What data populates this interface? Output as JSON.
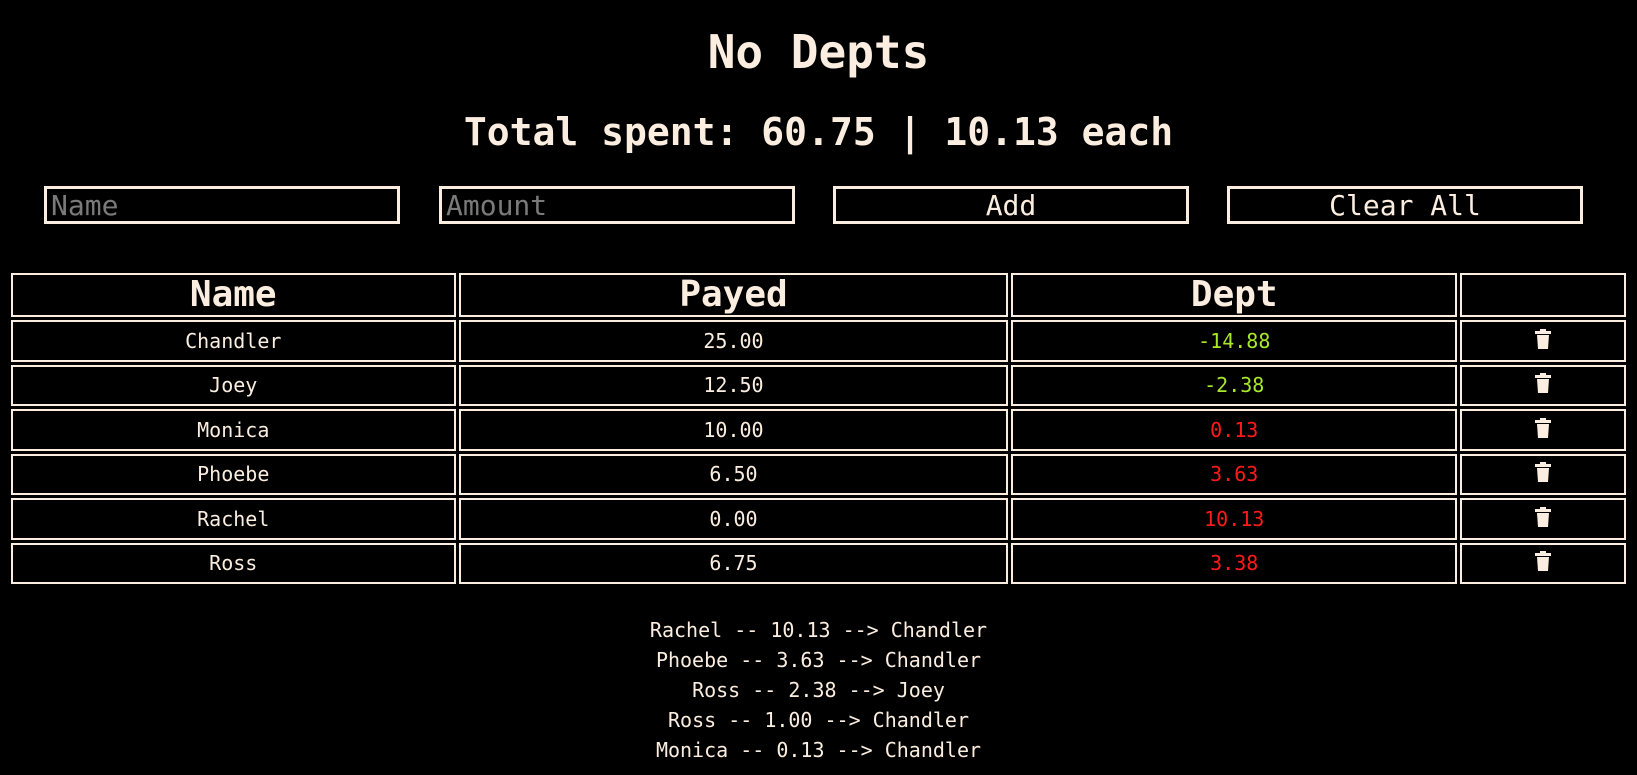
{
  "header": {
    "title": "No Depts",
    "summary": "Total spent: 60.75 | 10.13 each"
  },
  "form": {
    "name_placeholder": "Name",
    "name_value": "",
    "amount_placeholder": "Amount",
    "amount_value": "",
    "add_label": "Add",
    "clear_label": "Clear All"
  },
  "table": {
    "columns": [
      "Name",
      "Payed",
      "Dept",
      ""
    ],
    "rows": [
      {
        "name": "Chandler",
        "payed": "25.00",
        "dept": "-14.88",
        "dept_status": "negative"
      },
      {
        "name": "Joey",
        "payed": "12.50",
        "dept": "-2.38",
        "dept_status": "negative"
      },
      {
        "name": "Monica",
        "payed": "10.00",
        "dept": "0.13",
        "dept_status": "positive"
      },
      {
        "name": "Phoebe",
        "payed": "6.50",
        "dept": "3.63",
        "dept_status": "positive"
      },
      {
        "name": "Rachel",
        "payed": "0.00",
        "dept": "10.13",
        "dept_status": "positive"
      },
      {
        "name": "Ross",
        "payed": "6.75",
        "dept": "3.38",
        "dept_status": "positive"
      }
    ],
    "row_action_icon": "trash-icon"
  },
  "transfers": [
    "Rachel -- 10.13 --> Chandler",
    "Phoebe -- 3.63 --> Chandler",
    "Ross -- 2.38 --> Joey",
    "Ross -- 1.00 --> Chandler",
    "Monica -- 0.13 --> Chandler"
  ],
  "colors": {
    "background": "#000000",
    "foreground": "#fbeee0",
    "negative_dept": "#a8e82a",
    "positive_dept": "#ff1a1a",
    "placeholder": "#7a7a7a"
  }
}
